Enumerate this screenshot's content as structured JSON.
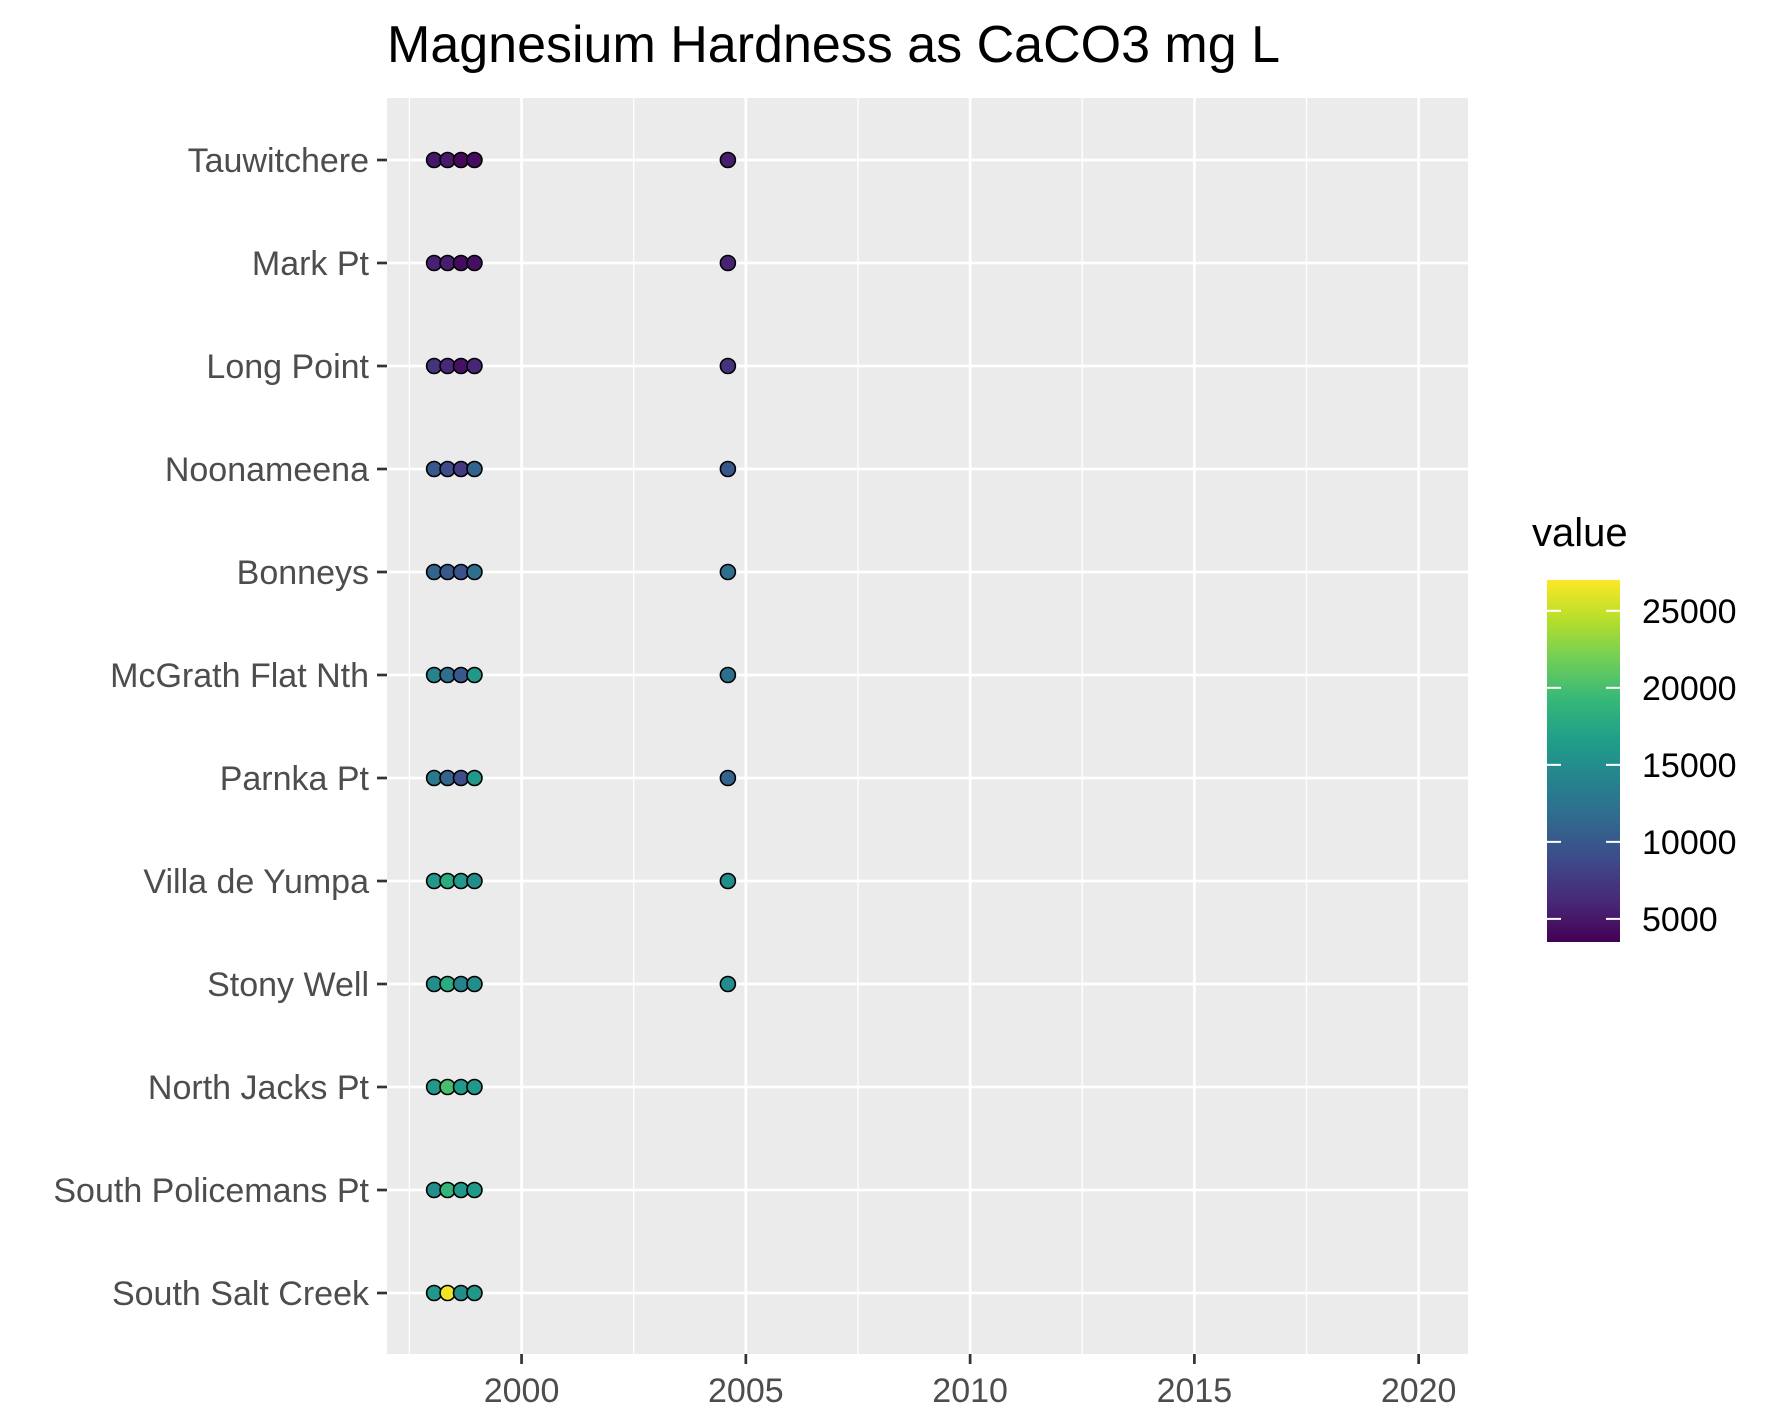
{
  "chart_data": {
    "type": "scatter",
    "title": "Magnesium Hardness as CaCO3 mg L",
    "xlabel": "",
    "ylabel": "",
    "xlim": [
      1997,
      2021.1
    ],
    "x_ticks": [
      2000,
      2005,
      2010,
      2015,
      2020
    ],
    "grid": true,
    "categories": [
      "Tauwitchere",
      "Mark Pt",
      "Long Point",
      "Noonameena",
      "Bonneys",
      "McGrath Flat Nth",
      "Parnka Pt",
      "Villa de Yumpa",
      "Stony Well",
      "North Jacks Pt",
      "South Policemans Pt",
      "South Salt Creek"
    ],
    "x": [
      1998.05,
      1998.35,
      1998.65,
      1998.95,
      2004.6
    ],
    "values": [
      [
        5000,
        5200,
        4000,
        4200,
        5400
      ],
      [
        5600,
        5400,
        4200,
        4500,
        5800
      ],
      [
        7000,
        6200,
        4600,
        6000,
        7000
      ],
      [
        10000,
        9000,
        7500,
        11000,
        10000
      ],
      [
        11000,
        10000,
        9500,
        12000,
        12000
      ],
      [
        14000,
        12000,
        10000,
        16000,
        12000
      ],
      [
        13000,
        11000,
        9000,
        16000,
        11000
      ],
      [
        16000,
        18000,
        16000,
        15000,
        15000
      ],
      [
        15000,
        18000,
        14000,
        15000,
        15000
      ],
      [
        16000,
        20000,
        16000,
        16000,
        null
      ],
      [
        15000,
        19000,
        16000,
        16000,
        null
      ],
      [
        16000,
        26500,
        15000,
        16000,
        null
      ]
    ],
    "color_scale": {
      "title": "value",
      "min": 3500,
      "max": 27000,
      "ticks": [
        5000,
        10000,
        15000,
        20000,
        25000
      ],
      "palette": [
        "#440154",
        "#482878",
        "#3e4989",
        "#31688e",
        "#26828e",
        "#1f9e89",
        "#35b779",
        "#6ece58",
        "#b5de2b",
        "#fde725"
      ]
    },
    "legend": "right"
  }
}
